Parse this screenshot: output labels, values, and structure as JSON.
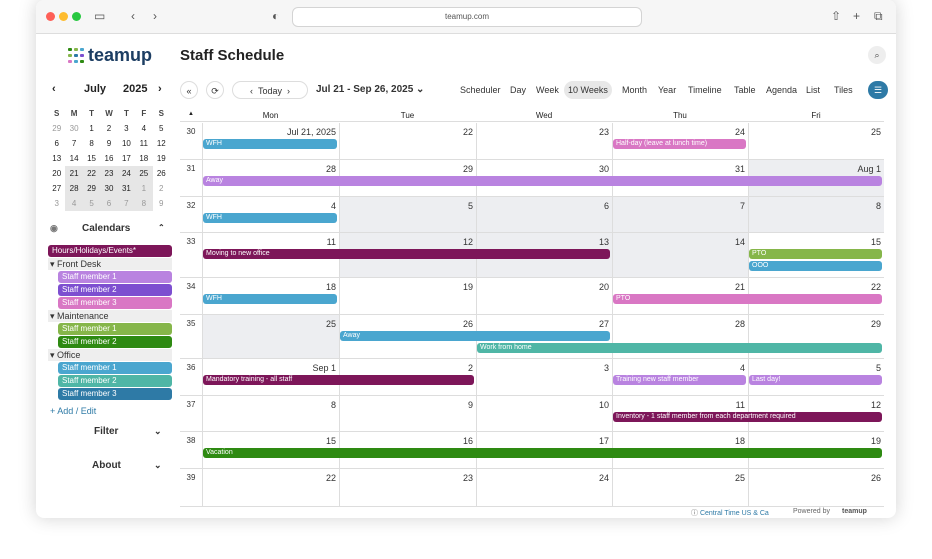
{
  "browser": {
    "url": "teamup.com"
  },
  "app": {
    "logo": "teamup",
    "title": "Staff Schedule"
  },
  "mini": {
    "month": "July",
    "year": "2025",
    "dow": [
      "S",
      "M",
      "T",
      "W",
      "T",
      "F",
      "S"
    ],
    "weeks": [
      [
        "29",
        "30",
        "1",
        "2",
        "3",
        "4",
        "5"
      ],
      [
        "6",
        "7",
        "8",
        "9",
        "10",
        "11",
        "12"
      ],
      [
        "13",
        "14",
        "15",
        "16",
        "17",
        "18",
        "19"
      ],
      [
        "20",
        "21",
        "22",
        "23",
        "24",
        "25",
        "26"
      ],
      [
        "27",
        "28",
        "29",
        "30",
        "31",
        "1",
        "2"
      ],
      [
        "3",
        "4",
        "5",
        "6",
        "7",
        "8",
        "9"
      ]
    ]
  },
  "calendars": {
    "heading": "Calendars",
    "top": "Hours/Holidays/Events*",
    "groups": [
      {
        "name": "Front Desk",
        "items": [
          "Staff member 1",
          "Staff member 2",
          "Staff member 3"
        ]
      },
      {
        "name": "Maintenance",
        "items": [
          "Staff member 1",
          "Staff member 2"
        ]
      },
      {
        "name": "Office",
        "items": [
          "Staff member 1",
          "Staff member 2",
          "Staff member 3"
        ]
      }
    ],
    "add_edit": "+ Add / Edit"
  },
  "filter": "Filter",
  "about": "About",
  "toolbar": {
    "today": "Today",
    "range": "Jul 21 - Sep 26, 2025",
    "views": [
      "Scheduler",
      "Day",
      "Week",
      "10 Weeks",
      "Month",
      "Year",
      "Timeline",
      "Table",
      "Agenda",
      "List",
      "Tiles"
    ],
    "active_view": "10 Weeks"
  },
  "days": [
    "Mon",
    "Tue",
    "Wed",
    "Thu",
    "Fri"
  ],
  "weeks": [
    {
      "num": "30",
      "dates": [
        "Jul 21, 2025",
        "22",
        "23",
        "24",
        "25"
      ]
    },
    {
      "num": "31",
      "dates": [
        "28",
        "29",
        "30",
        "31",
        "Aug 1"
      ]
    },
    {
      "num": "32",
      "dates": [
        "4",
        "5",
        "6",
        "7",
        "8"
      ]
    },
    {
      "num": "33",
      "dates": [
        "11",
        "12",
        "13",
        "14",
        "15"
      ]
    },
    {
      "num": "34",
      "dates": [
        "18",
        "19",
        "20",
        "21",
        "22"
      ]
    },
    {
      "num": "35",
      "dates": [
        "25",
        "26",
        "27",
        "28",
        "29"
      ]
    },
    {
      "num": "36",
      "dates": [
        "Sep 1",
        "2",
        "3",
        "4",
        "5"
      ]
    },
    {
      "num": "37",
      "dates": [
        "8",
        "9",
        "10",
        "11",
        "12"
      ]
    },
    {
      "num": "38",
      "dates": [
        "15",
        "16",
        "17",
        "18",
        "19"
      ]
    },
    {
      "num": "39",
      "dates": [
        "22",
        "23",
        "24",
        "25",
        "26"
      ]
    }
  ],
  "events": [
    {
      "title": "WFH",
      "week": 0,
      "start": 0,
      "span": 1,
      "lane": 0,
      "color": "#4aa6cf"
    },
    {
      "title": "Half-day (leave at lunch time)",
      "week": 0,
      "start": 3,
      "span": 1,
      "lane": 0,
      "color": "#d977c4"
    },
    {
      "title": "Away",
      "week": 1,
      "start": 0,
      "span": 5,
      "lane": 0,
      "color": "#b983e0"
    },
    {
      "title": "WFH",
      "week": 2,
      "start": 0,
      "span": 1,
      "lane": 0,
      "color": "#4aa6cf"
    },
    {
      "title": "Moving to new office",
      "week": 3,
      "start": 0,
      "span": 3,
      "lane": 0,
      "color": "#7d1659"
    },
    {
      "title": "PTO",
      "week": 3,
      "start": 4,
      "span": 1,
      "lane": 0,
      "color": "#86b64a"
    },
    {
      "title": "OOO",
      "week": 3,
      "start": 4,
      "span": 1,
      "lane": 1,
      "color": "#4aa6cf"
    },
    {
      "title": "WFH",
      "week": 4,
      "start": 0,
      "span": 1,
      "lane": 0,
      "color": "#4aa6cf"
    },
    {
      "title": "PTO",
      "week": 4,
      "start": 3,
      "span": 2,
      "lane": 0,
      "color": "#d977c4"
    },
    {
      "title": "Away",
      "week": 5,
      "start": 1,
      "span": 2,
      "lane": 0,
      "color": "#4aa6cf"
    },
    {
      "title": "Work from home",
      "week": 5,
      "start": 2,
      "span": 3,
      "lane": 1,
      "color": "#4fb6a6"
    },
    {
      "title": "Mandatory training - all staff",
      "week": 6,
      "start": 0,
      "span": 2,
      "lane": 0,
      "color": "#7d1659"
    },
    {
      "title": "Training new staff member",
      "week": 6,
      "start": 3,
      "span": 1,
      "lane": 0,
      "color": "#b983e0"
    },
    {
      "title": "Last day!",
      "week": 6,
      "start": 4,
      "span": 1,
      "lane": 0,
      "color": "#b983e0"
    },
    {
      "title": "Inventory - 1 staff member from each department required",
      "week": 7,
      "start": 3,
      "span": 2,
      "lane": 0,
      "color": "#7d1659"
    },
    {
      "title": "Vacation",
      "week": 8,
      "start": 0,
      "span": 5,
      "lane": 0,
      "color": "#2e8a12"
    }
  ],
  "footer": {
    "tz": "Central Time US & Ca",
    "powered": "Powered by",
    "brand": "teamup"
  },
  "colors": {
    "top": "#7d1659",
    "fd": [
      "#b983e0",
      "#7d4fd0",
      "#d977c4"
    ],
    "mt": [
      "#86b64a",
      "#2e8a12"
    ],
    "of": [
      "#4aa6cf",
      "#4fb6a6",
      "#2e7aa6"
    ]
  }
}
